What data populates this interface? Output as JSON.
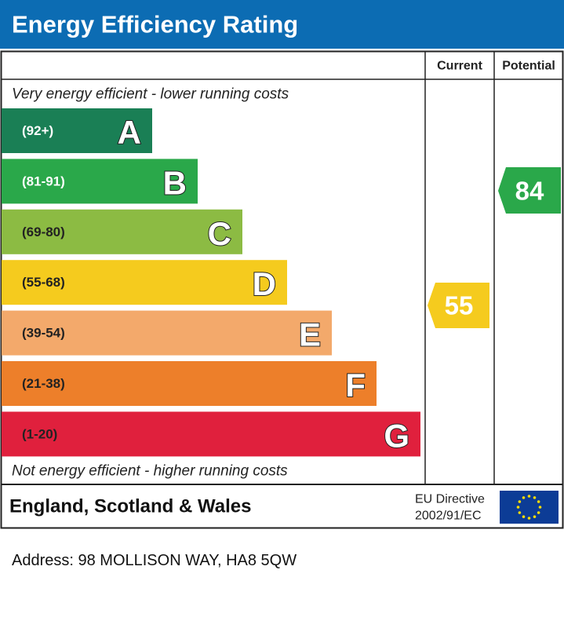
{
  "header": {
    "title": "Energy Efficiency Rating"
  },
  "table": {
    "columns": [
      "Current",
      "Potential"
    ],
    "top_note": "Very energy efficient - lower running costs",
    "bottom_note": "Not energy efficient - higher running costs",
    "bands": [
      {
        "range": "(92+)",
        "letter": "A"
      },
      {
        "range": "(81-91)",
        "letter": "B"
      },
      {
        "range": "(69-80)",
        "letter": "C"
      },
      {
        "range": "(55-68)",
        "letter": "D"
      },
      {
        "range": "(39-54)",
        "letter": "E"
      },
      {
        "range": "(21-38)",
        "letter": "F"
      },
      {
        "range": "(1-20)",
        "letter": "G"
      }
    ],
    "current": 55,
    "potential": 84
  },
  "footer": {
    "region": "England, Scotland & Wales",
    "directive": [
      "EU Directive",
      "2002/91/EC"
    ]
  },
  "address": "Address: 98 MOLLISON WAY, HA8 5QW"
}
